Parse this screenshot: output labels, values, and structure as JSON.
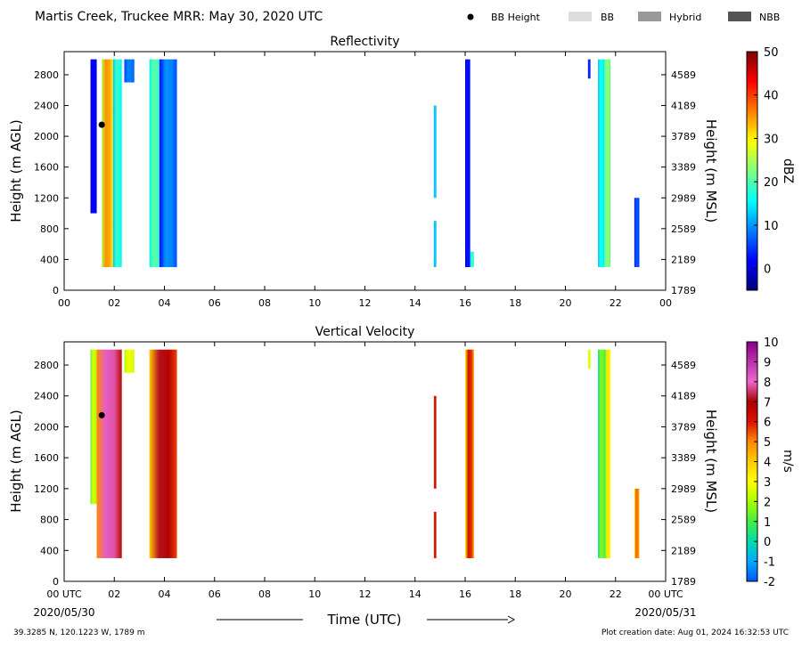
{
  "header": {
    "title": "Martis Creek, Truckee MRR:  May 30, 2020 UTC",
    "legend": [
      {
        "label": "BB Height",
        "kind": "dot",
        "color": "#000000"
      },
      {
        "label": "BB",
        "kind": "swatch",
        "color": "#dddddd"
      },
      {
        "label": "Hybrid",
        "kind": "swatch",
        "color": "#999999"
      },
      {
        "label": "NBB",
        "kind": "swatch",
        "color": "#555555"
      }
    ]
  },
  "footer": {
    "coords": "39.3285 N, 120.1223 W, 1789 m",
    "creation": "Plot creation date: Aug 01, 2024 16:32:53 UTC",
    "xlabel": "Time (UTC)",
    "start_date": "2020/05/30",
    "end_date": "2020/05/31"
  },
  "chart_data": [
    {
      "type": "heatmap",
      "title": "Reflectivity",
      "ylabel": "Height (m AGL)",
      "y2label": "Height (m MSL)",
      "ylim": [
        0,
        3100
      ],
      "xlim": [
        0,
        24
      ],
      "x_ticks": [
        "00",
        "02",
        "04",
        "06",
        "08",
        "10",
        "12",
        "14",
        "16",
        "18",
        "20",
        "22",
        "00"
      ],
      "y_ticks": [
        0,
        400,
        800,
        1200,
        1600,
        2000,
        2400,
        2800
      ],
      "y2_ticks": [
        "1789",
        "2189",
        "2589",
        "2989",
        "3389",
        "3789",
        "4189",
        "4589"
      ],
      "colorbar": {
        "label": "dBZ",
        "min": -5,
        "max": 50,
        "ticks": [
          0,
          10,
          20,
          30,
          40,
          50
        ]
      },
      "bright_band": {
        "time": 1.5,
        "height": 2150
      },
      "echoes": [
        {
          "t0": 1.05,
          "t1": 1.3,
          "h0": 1000,
          "h1": 3000,
          "v0": -2,
          "v1": 3
        },
        {
          "t0": 1.5,
          "t1": 1.95,
          "h0": 300,
          "h1": 3000,
          "v0": 25,
          "v1": 38
        },
        {
          "t0": 1.95,
          "t1": 2.3,
          "h0": 300,
          "h1": 3000,
          "v0": 12,
          "v1": 20
        },
        {
          "t0": 2.4,
          "t1": 2.8,
          "h0": 2700,
          "h1": 3000,
          "v0": 5,
          "v1": 10
        },
        {
          "t0": 3.4,
          "t1": 3.8,
          "h0": 300,
          "h1": 3000,
          "v0": 15,
          "v1": 22
        },
        {
          "t0": 3.8,
          "t1": 4.5,
          "h0": 300,
          "h1": 3000,
          "v0": 2,
          "v1": 12
        },
        {
          "t0": 14.75,
          "t1": 14.85,
          "h0": 1200,
          "h1": 2400,
          "v0": 10,
          "v1": 14
        },
        {
          "t0": 14.75,
          "t1": 14.85,
          "h0": 300,
          "h1": 900,
          "v0": 10,
          "v1": 14
        },
        {
          "t0": 16.0,
          "t1": 16.2,
          "h0": 300,
          "h1": 3000,
          "v0": -1,
          "v1": 4
        },
        {
          "t0": 16.2,
          "t1": 16.35,
          "h0": 300,
          "h1": 500,
          "v0": 15,
          "v1": 20
        },
        {
          "t0": 20.9,
          "t1": 21.0,
          "h0": 2750,
          "h1": 3000,
          "v0": 2,
          "v1": 5
        },
        {
          "t0": 21.3,
          "t1": 21.55,
          "h0": 300,
          "h1": 3000,
          "v0": 12,
          "v1": 18
        },
        {
          "t0": 21.55,
          "t1": 21.8,
          "h0": 300,
          "h1": 3000,
          "v0": 18,
          "v1": 25
        },
        {
          "t0": 22.75,
          "t1": 22.95,
          "h0": 300,
          "h1": 1200,
          "v0": 2,
          "v1": 8
        }
      ]
    },
    {
      "type": "heatmap",
      "title": "Vertical Velocity",
      "ylabel": "Height (m AGL)",
      "y2label": "Height (m MSL)",
      "ylim": [
        0,
        3100
      ],
      "xlim": [
        0,
        24
      ],
      "x_ticks": [
        "00 UTC",
        "02",
        "04",
        "06",
        "08",
        "10",
        "12",
        "14",
        "16",
        "18",
        "20",
        "22",
        "00 UTC"
      ],
      "y_ticks": [
        0,
        400,
        800,
        1200,
        1600,
        2000,
        2400,
        2800
      ],
      "y2_ticks": [
        "1789",
        "2189",
        "2589",
        "2989",
        "3389",
        "3789",
        "4189",
        "4589"
      ],
      "colorbar": {
        "label": "m/s",
        "min": -2,
        "max": 10,
        "ticks": [
          -2,
          -1,
          0,
          1,
          2,
          3,
          4,
          5,
          6,
          7,
          8,
          9,
          10
        ]
      },
      "bright_band": {
        "time": 1.5,
        "height": 2150
      },
      "echoes": [
        {
          "t0": 1.05,
          "t1": 1.3,
          "h0": 1000,
          "h1": 3000,
          "v0": 1,
          "v1": 3
        },
        {
          "t0": 1.3,
          "t1": 2.3,
          "h0": 300,
          "h1": 3000,
          "v0": 5,
          "v1": 9
        },
        {
          "t0": 2.4,
          "t1": 2.8,
          "h0": 2700,
          "h1": 3000,
          "v0": 2,
          "v1": 3
        },
        {
          "t0": 3.4,
          "t1": 4.5,
          "h0": 300,
          "h1": 3000,
          "v0": 4,
          "v1": 8
        },
        {
          "t0": 14.75,
          "t1": 14.85,
          "h0": 1200,
          "h1": 2400,
          "v0": 5.5,
          "v1": 6.5
        },
        {
          "t0": 14.75,
          "t1": 14.85,
          "h0": 300,
          "h1": 900,
          "v0": 5.5,
          "v1": 6.5
        },
        {
          "t0": 16.0,
          "t1": 16.35,
          "h0": 300,
          "h1": 3000,
          "v0": 3,
          "v1": 7
        },
        {
          "t0": 20.9,
          "t1": 21.0,
          "h0": 2750,
          "h1": 3000,
          "v0": 2,
          "v1": 3
        },
        {
          "t0": 21.3,
          "t1": 21.6,
          "h0": 300,
          "h1": 3000,
          "v0": 0,
          "v1": 2
        },
        {
          "t0": 21.6,
          "t1": 21.8,
          "h0": 300,
          "h1": 3000,
          "v0": 2,
          "v1": 4
        },
        {
          "t0": 22.75,
          "t1": 22.95,
          "h0": 300,
          "h1": 1200,
          "v0": 3,
          "v1": 6
        }
      ]
    }
  ]
}
